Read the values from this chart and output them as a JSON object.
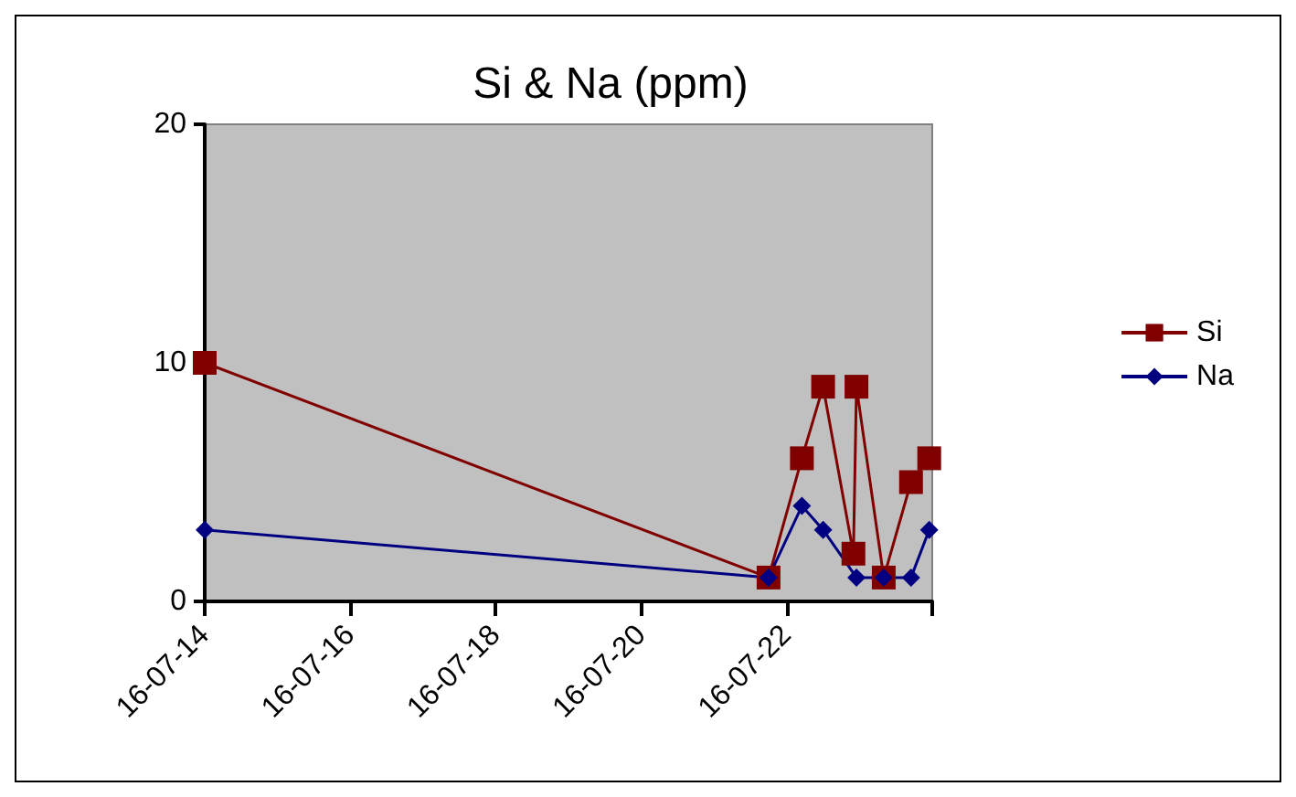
{
  "chart_data": {
    "type": "line",
    "title": "Si & Na (ppm)",
    "series": [
      {
        "name": "Si",
        "color": "#800000",
        "marker": "square",
        "x": [
          "--07-14",
          "--07-21T18:00",
          "--07-22T05:00",
          "--07-22T12:00",
          "--07-22T22:00",
          "--07-22T23:00",
          "--07-23T08:00",
          "--07-23T17:00",
          "--07-23T23:00"
        ],
        "values": [
          10,
          1,
          6,
          9,
          2,
          9,
          1,
          5,
          6
        ]
      },
      {
        "name": "Na",
        "color": "#000080",
        "marker": "diamond",
        "x": [
          "--07-14",
          "--07-21T18:00",
          "--07-22T05:00",
          "--07-22T12:00",
          "--07-22T23:00",
          "--07-23T08:00",
          "--07-23T17:00",
          "--07-23T23:00"
        ],
        "values": [
          3,
          1,
          4,
          3,
          1,
          1,
          1,
          3
        ]
      }
    ],
    "xlim": [
      "--07-14",
      "--07-24"
    ],
    "xticks": [
      {
        "value": "--07-14",
        "label": "16-07-14"
      },
      {
        "value": "--07-16",
        "label": "16-07-16"
      },
      {
        "value": "--07-18",
        "label": "16-07-18"
      },
      {
        "value": "--07-20",
        "label": "16-07-20"
      },
      {
        "value": "--07-22",
        "label": "16-07-22"
      },
      {
        "value": "--07-24",
        "label": null
      }
    ],
    "ylim": [
      0,
      20
    ],
    "yticks": [
      0,
      10,
      20
    ],
    "grid": false,
    "legend": "right",
    "line_style": "solid"
  }
}
